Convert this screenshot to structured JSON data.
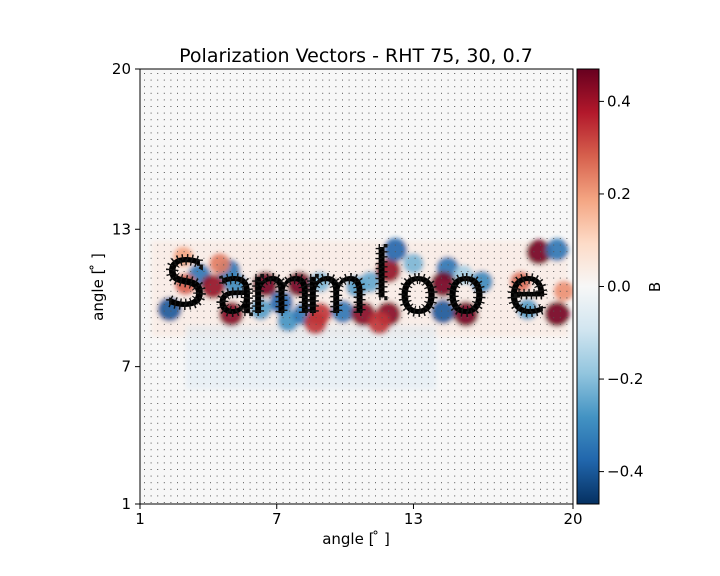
{
  "chart_data": {
    "type": "heatmap",
    "title": "Polarization Vectors - RHT 75, 30, 0.7",
    "xlabel": "angle [$^\\circ$]",
    "ylabel": "angle [$^\\circ$]",
    "xlabel_display": "angle [ ̊ ]",
    "ylabel_display": "angle [ ̊ ]",
    "xlim": [
      1,
      20
    ],
    "ylim": [
      1,
      20
    ],
    "xticks": [
      1,
      7,
      13,
      20
    ],
    "yticks": [
      1,
      7,
      13,
      20
    ],
    "colorbar": {
      "label": "B",
      "colormap": "RdBu_r",
      "range": [
        -0.47,
        0.47
      ],
      "ticks": [
        -0.4,
        -0.2,
        0.0,
        0.2,
        0.4
      ],
      "tick_labels": [
        "−0.4",
        "−0.2",
        "0.0",
        "0.2",
        "0.4"
      ]
    },
    "overlay": "polarization vector field (quiver); long vectors trace the letter shapes, short dots elsewhere",
    "blobs": [
      {
        "x": 2.3,
        "y": 9.5,
        "v": -0.38
      },
      {
        "x": 3.6,
        "y": 11.0,
        "v": -0.3
      },
      {
        "x": 2.9,
        "y": 11.8,
        "v": 0.12
      },
      {
        "x": 4.2,
        "y": 10.5,
        "v": 0.4
      },
      {
        "x": 3.0,
        "y": 10.6,
        "v": 0.22
      },
      {
        "x": 4.9,
        "y": 11.2,
        "v": -0.3
      },
      {
        "x": 4.5,
        "y": 11.5,
        "v": 0.18
      },
      {
        "x": 5.2,
        "y": 10.6,
        "v": -0.25
      },
      {
        "x": 5.0,
        "y": 9.3,
        "v": 0.42
      },
      {
        "x": 6.5,
        "y": 10.6,
        "v": 0.45
      },
      {
        "x": 7.2,
        "y": 9.8,
        "v": -0.35
      },
      {
        "x": 6.3,
        "y": 9.5,
        "v": -0.2
      },
      {
        "x": 7.5,
        "y": 9.0,
        "v": -0.22
      },
      {
        "x": 8.2,
        "y": 9.3,
        "v": -0.3
      },
      {
        "x": 8.0,
        "y": 10.6,
        "v": 0.45
      },
      {
        "x": 8.9,
        "y": 9.3,
        "v": 0.3
      },
      {
        "x": 8.7,
        "y": 8.9,
        "v": 0.3
      },
      {
        "x": 8.9,
        "y": 10.7,
        "v": -0.15
      },
      {
        "x": 9.9,
        "y": 9.4,
        "v": -0.3
      },
      {
        "x": 10.5,
        "y": 10.5,
        "v": -0.2
      },
      {
        "x": 10.8,
        "y": 9.3,
        "v": 0.42
      },
      {
        "x": 11.1,
        "y": 10.7,
        "v": -0.18
      },
      {
        "x": 11.9,
        "y": 11.2,
        "v": 0.4
      },
      {
        "x": 12.2,
        "y": 12.1,
        "v": -0.35
      },
      {
        "x": 11.9,
        "y": 9.3,
        "v": 0.42
      },
      {
        "x": 11.5,
        "y": 8.9,
        "v": 0.3
      },
      {
        "x": 13.0,
        "y": 11.5,
        "v": -0.15
      },
      {
        "x": 14.5,
        "y": 11.3,
        "v": -0.3
      },
      {
        "x": 14.3,
        "y": 10.6,
        "v": 0.45
      },
      {
        "x": 14.3,
        "y": 9.4,
        "v": -0.38
      },
      {
        "x": 15.3,
        "y": 9.3,
        "v": 0.45
      },
      {
        "x": 16.0,
        "y": 10.7,
        "v": -0.25
      },
      {
        "x": 15.2,
        "y": 11.0,
        "v": -0.1
      },
      {
        "x": 17.7,
        "y": 10.7,
        "v": 0.2
      },
      {
        "x": 18.0,
        "y": 9.5,
        "v": -0.2
      },
      {
        "x": 18.5,
        "y": 12.0,
        "v": 0.45
      },
      {
        "x": 19.3,
        "y": 12.1,
        "v": -0.3
      },
      {
        "x": 19.3,
        "y": 9.3,
        "v": 0.45
      },
      {
        "x": 19.6,
        "y": 10.3,
        "v": 0.15
      }
    ],
    "letters": [
      {
        "char": "S",
        "x": 3.0,
        "y": 10.6
      },
      {
        "char": "a",
        "x": 5.2,
        "y": 10.3
      },
      {
        "char": "m",
        "x": 7.2,
        "y": 10.3
      },
      {
        "char": "m",
        "x": 9.6,
        "y": 10.3
      },
      {
        "char": "l",
        "x": 11.6,
        "y": 11.0
      },
      {
        "char": "o",
        "x": 13.2,
        "y": 10.3
      },
      {
        "char": "o",
        "x": 15.3,
        "y": 10.3
      },
      {
        "char": "e",
        "x": 18.0,
        "y": 10.3
      }
    ]
  }
}
